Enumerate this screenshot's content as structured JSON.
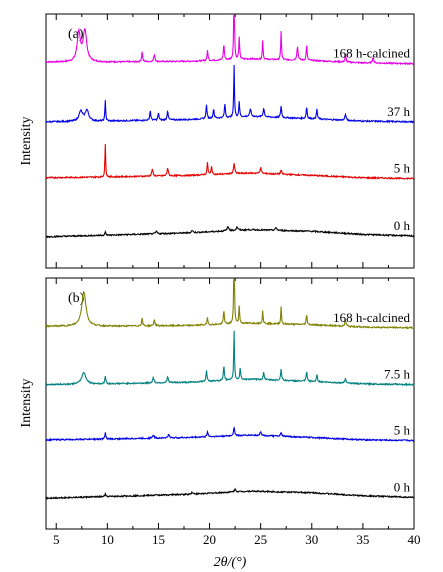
{
  "chart_data": [
    {
      "type": "line",
      "panel_label": "(a)",
      "ylabel": "Intensity",
      "xlim": [
        4,
        40
      ],
      "series": [
        {
          "name": "168 h-calcined",
          "color": "#e600e6",
          "offset": 0.78,
          "baseline": [
            [
              4,
              0.2
            ],
            [
              10,
              0.2
            ],
            [
              18,
              0.22
            ],
            [
              24,
              0.28
            ],
            [
              30,
              0.24
            ],
            [
              35,
              0.18
            ],
            [
              40,
              0.16
            ]
          ],
          "peaks": [
            [
              7.2,
              0.75,
              0.25
            ],
            [
              7.8,
              0.8,
              0.3
            ],
            [
              13.4,
              0.25,
              0.08
            ],
            [
              14.6,
              0.18,
              0.1
            ],
            [
              19.8,
              0.25,
              0.08
            ],
            [
              21.4,
              0.4,
              0.08
            ],
            [
              22.4,
              2.05,
              0.06
            ],
            [
              22.9,
              0.55,
              0.07
            ],
            [
              25.2,
              0.5,
              0.06
            ],
            [
              27.0,
              0.75,
              0.06
            ],
            [
              28.6,
              0.35,
              0.1
            ],
            [
              29.5,
              0.4,
              0.07
            ],
            [
              33.3,
              0.2,
              0.08
            ],
            [
              36.0,
              0.15,
              0.1
            ]
          ]
        },
        {
          "name": "37 h",
          "color": "#0000e6",
          "offset": 0.56,
          "baseline": [
            [
              4,
              0.1
            ],
            [
              10,
              0.12
            ],
            [
              18,
              0.16
            ],
            [
              24,
              0.24
            ],
            [
              30,
              0.18
            ],
            [
              35,
              0.12
            ],
            [
              40,
              0.1
            ]
          ],
          "peaks": [
            [
              7.4,
              0.25,
              0.3
            ],
            [
              8.0,
              0.28,
              0.3
            ],
            [
              9.8,
              0.55,
              0.06
            ],
            [
              14.2,
              0.25,
              0.08
            ],
            [
              15.0,
              0.18,
              0.08
            ],
            [
              15.9,
              0.25,
              0.08
            ],
            [
              19.7,
              0.35,
              0.08
            ],
            [
              20.4,
              0.25,
              0.08
            ],
            [
              21.5,
              0.35,
              0.08
            ],
            [
              22.4,
              1.35,
              0.06
            ],
            [
              22.9,
              0.4,
              0.07
            ],
            [
              24.0,
              0.2,
              0.1
            ],
            [
              25.3,
              0.22,
              0.1
            ],
            [
              27.0,
              0.3,
              0.08
            ],
            [
              29.5,
              0.3,
              0.08
            ],
            [
              30.5,
              0.25,
              0.08
            ],
            [
              33.3,
              0.15,
              0.1
            ]
          ]
        },
        {
          "name": "5 h",
          "color": "#e60000",
          "offset": 0.34,
          "baseline": [
            [
              4,
              0.1
            ],
            [
              10,
              0.12
            ],
            [
              18,
              0.16
            ],
            [
              24,
              0.22
            ],
            [
              30,
              0.16
            ],
            [
              35,
              0.1
            ],
            [
              40,
              0.08
            ]
          ],
          "peaks": [
            [
              9.8,
              0.85,
              0.06
            ],
            [
              14.4,
              0.18,
              0.1
            ],
            [
              15.9,
              0.2,
              0.1
            ],
            [
              19.8,
              0.3,
              0.08
            ],
            [
              20.2,
              0.2,
              0.08
            ],
            [
              22.4,
              0.25,
              0.1
            ],
            [
              25.0,
              0.15,
              0.1
            ],
            [
              27.0,
              0.1,
              0.1
            ]
          ]
        },
        {
          "name": "0 h",
          "color": "#000000",
          "offset": 0.12,
          "baseline": [
            [
              4,
              0.02
            ],
            [
              10,
              0.06
            ],
            [
              18,
              0.12
            ],
            [
              24,
              0.2
            ],
            [
              30,
              0.16
            ],
            [
              35,
              0.08
            ],
            [
              40,
              0.04
            ]
          ],
          "peaks": [
            [
              9.8,
              0.08,
              0.08
            ],
            [
              14.8,
              0.06,
              0.12
            ],
            [
              18.3,
              0.06,
              0.12
            ],
            [
              21.8,
              0.1,
              0.15
            ],
            [
              22.7,
              0.08,
              0.15
            ],
            [
              26.5,
              0.06,
              0.15
            ]
          ]
        }
      ]
    },
    {
      "type": "line",
      "panel_label": "(b)",
      "ylabel": "Intensity",
      "xlabel": "2θ/(°)",
      "xlim": [
        4,
        40
      ],
      "xticks": [
        5,
        10,
        15,
        20,
        25,
        30,
        35,
        40
      ],
      "series": [
        {
          "name": "168 h-calcined",
          "color": "#808000",
          "offset": 0.78,
          "baseline": [
            [
              4,
              0.18
            ],
            [
              10,
              0.18
            ],
            [
              18,
              0.2
            ],
            [
              24,
              0.26
            ],
            [
              30,
              0.22
            ],
            [
              35,
              0.16
            ],
            [
              40,
              0.14
            ]
          ],
          "peaks": [
            [
              7.7,
              0.9,
              0.35
            ],
            [
              13.4,
              0.2,
              0.08
            ],
            [
              14.6,
              0.15,
              0.1
            ],
            [
              19.8,
              0.18,
              0.08
            ],
            [
              21.4,
              0.35,
              0.08
            ],
            [
              22.4,
              2.15,
              0.06
            ],
            [
              22.9,
              0.45,
              0.07
            ],
            [
              25.2,
              0.35,
              0.06
            ],
            [
              27.0,
              0.45,
              0.06
            ],
            [
              29.5,
              0.25,
              0.08
            ],
            [
              33.3,
              0.15,
              0.1
            ]
          ]
        },
        {
          "name": "7.5 h",
          "color": "#008080",
          "offset": 0.56,
          "baseline": [
            [
              4,
              0.1
            ],
            [
              10,
              0.12
            ],
            [
              18,
              0.16
            ],
            [
              24,
              0.24
            ],
            [
              30,
              0.18
            ],
            [
              35,
              0.12
            ],
            [
              40,
              0.1
            ]
          ],
          "peaks": [
            [
              7.7,
              0.3,
              0.35
            ],
            [
              9.8,
              0.2,
              0.08
            ],
            [
              14.5,
              0.15,
              0.1
            ],
            [
              15.9,
              0.15,
              0.1
            ],
            [
              19.7,
              0.3,
              0.08
            ],
            [
              21.4,
              0.4,
              0.08
            ],
            [
              22.4,
              1.3,
              0.06
            ],
            [
              23.0,
              0.3,
              0.08
            ],
            [
              25.3,
              0.2,
              0.08
            ],
            [
              27.0,
              0.3,
              0.08
            ],
            [
              29.5,
              0.25,
              0.08
            ],
            [
              30.5,
              0.2,
              0.08
            ],
            [
              33.3,
              0.12,
              0.1
            ]
          ]
        },
        {
          "name": "5 h",
          "color": "#0000e6",
          "offset": 0.34,
          "baseline": [
            [
              4,
              0.1
            ],
            [
              10,
              0.12
            ],
            [
              18,
              0.16
            ],
            [
              24,
              0.22
            ],
            [
              30,
              0.16
            ],
            [
              35,
              0.1
            ],
            [
              40,
              0.08
            ]
          ],
          "peaks": [
            [
              9.8,
              0.18,
              0.07
            ],
            [
              14.5,
              0.08,
              0.12
            ],
            [
              16.0,
              0.08,
              0.12
            ],
            [
              19.8,
              0.12,
              0.1
            ],
            [
              22.4,
              0.22,
              0.1
            ],
            [
              25.0,
              0.1,
              0.12
            ],
            [
              27.0,
              0.08,
              0.12
            ]
          ]
        },
        {
          "name": "0 h",
          "color": "#000000",
          "offset": 0.12,
          "baseline": [
            [
              4,
              0.02
            ],
            [
              10,
              0.06
            ],
            [
              18,
              0.12
            ],
            [
              24,
              0.2
            ],
            [
              30,
              0.16
            ],
            [
              35,
              0.08
            ],
            [
              40,
              0.04
            ]
          ],
          "peaks": [
            [
              9.8,
              0.06,
              0.08
            ],
            [
              18.3,
              0.05,
              0.12
            ],
            [
              22.5,
              0.06,
              0.15
            ]
          ]
        }
      ]
    }
  ]
}
